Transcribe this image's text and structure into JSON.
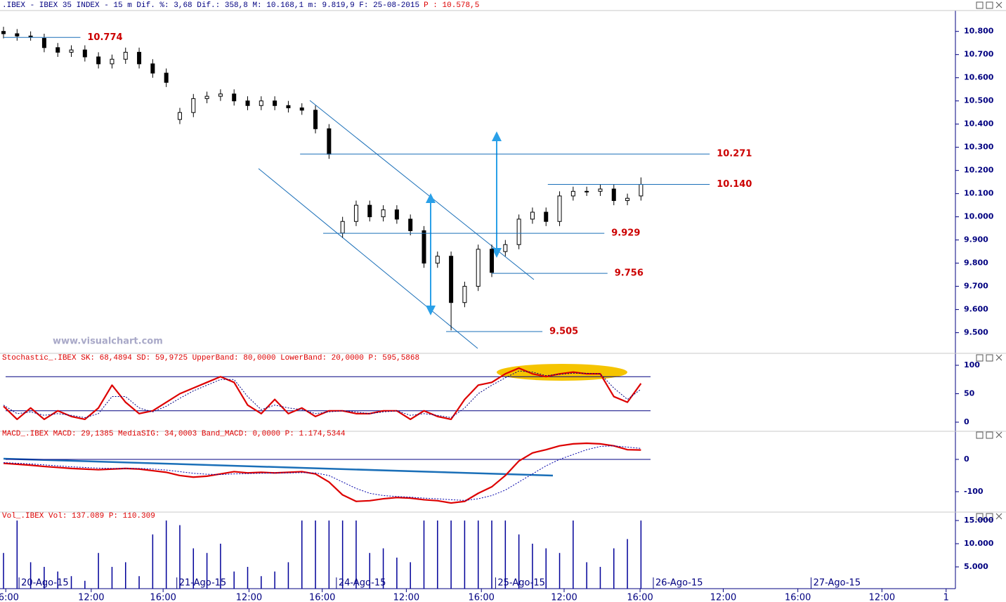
{
  "watermark": "www.visualchart.com",
  "chart_data": [
    {
      "type": "candlestick",
      "title": ".IBEX - IBEX 35 INDEX -  15 m Dif. %: 3,68 Dif.: 358,8 M: 10.168,1 m: 9.819,9 F: 25-08-2015",
      "subtitle": "P : 10.578,5",
      "x": [
        0,
        3,
        6,
        9,
        12,
        15,
        18,
        21,
        24,
        27,
        30,
        33,
        36,
        39,
        42,
        45,
        48,
        51,
        54,
        57,
        60,
        63,
        66,
        69,
        72,
        75,
        78,
        81,
        84,
        87,
        90,
        93,
        96,
        99,
        102,
        105,
        108,
        111,
        114,
        117,
        120,
        123,
        126,
        129,
        132,
        135,
        138,
        141
      ],
      "open": [
        10.8,
        10.79,
        10.78,
        10.77,
        10.73,
        10.71,
        10.72,
        10.69,
        10.66,
        10.68,
        10.71,
        10.66,
        10.62,
        10.42,
        10.45,
        10.51,
        10.52,
        10.53,
        10.5,
        10.48,
        10.5,
        10.48,
        10.47,
        10.46,
        10.38,
        9.93,
        9.98,
        10.05,
        10.0,
        10.03,
        9.99,
        9.94,
        9.8,
        9.83,
        9.63,
        9.7,
        9.86,
        9.85,
        9.88,
        9.99,
        10.02,
        9.98,
        10.09,
        10.11,
        10.11,
        10.12,
        10.07,
        10.09
      ],
      "high": [
        10.82,
        10.81,
        10.8,
        10.79,
        10.75,
        10.74,
        10.74,
        10.71,
        10.7,
        10.73,
        10.73,
        10.68,
        10.64,
        10.47,
        10.53,
        10.54,
        10.55,
        10.55,
        10.52,
        10.52,
        10.52,
        10.5,
        10.49,
        10.48,
        10.4,
        10.0,
        10.07,
        10.07,
        10.05,
        10.05,
        10.01,
        9.96,
        9.85,
        9.85,
        9.72,
        9.88,
        9.88,
        9.9,
        10.01,
        10.04,
        10.04,
        10.11,
        10.13,
        10.13,
        10.14,
        10.14,
        10.1,
        10.17
      ],
      "low": [
        10.77,
        10.76,
        10.76,
        10.71,
        10.69,
        10.69,
        10.67,
        10.64,
        10.64,
        10.66,
        10.64,
        10.6,
        10.56,
        10.4,
        10.43,
        10.49,
        10.5,
        10.48,
        10.46,
        10.46,
        10.46,
        10.45,
        10.44,
        10.36,
        10.25,
        9.91,
        9.96,
        9.98,
        9.98,
        9.97,
        9.92,
        9.78,
        9.78,
        9.51,
        9.61,
        9.68,
        9.74,
        9.83,
        9.86,
        9.97,
        9.96,
        9.96,
        10.07,
        10.09,
        10.09,
        10.05,
        10.05,
        10.07
      ],
      "close": [
        10.79,
        10.78,
        10.78,
        10.73,
        10.71,
        10.72,
        10.69,
        10.66,
        10.68,
        10.71,
        10.66,
        10.62,
        10.58,
        10.45,
        10.51,
        10.52,
        10.53,
        10.5,
        10.48,
        10.5,
        10.48,
        10.47,
        10.46,
        10.38,
        10.27,
        9.98,
        10.05,
        10.0,
        10.03,
        9.99,
        9.94,
        9.8,
        9.83,
        9.63,
        9.7,
        9.86,
        9.76,
        9.88,
        9.99,
        10.02,
        9.98,
        10.09,
        10.11,
        10.11,
        10.12,
        10.07,
        10.08,
        10.14
      ],
      "up_color": "#ffffff",
      "down_color": "#000000",
      "wick_color": "#000000",
      "xlim": [
        0,
        209
      ],
      "ylim": [
        9.42,
        10.89
      ],
      "yticks": [
        {
          "value": 9.5,
          "label": "9.500"
        },
        {
          "value": 9.6,
          "label": "9.600"
        },
        {
          "value": 9.7,
          "label": "9.700"
        },
        {
          "value": 9.8,
          "label": "9.800"
        },
        {
          "value": 9.9,
          "label": "9.900"
        },
        {
          "value": 10.0,
          "label": "10.000"
        },
        {
          "value": 10.1,
          "label": "10.100"
        },
        {
          "value": 10.2,
          "label": "10.200"
        },
        {
          "value": 10.3,
          "label": "10.300"
        },
        {
          "value": 10.4,
          "label": "10.400"
        },
        {
          "value": 10.5,
          "label": "10.500"
        },
        {
          "value": 10.6,
          "label": "10.600"
        },
        {
          "value": 10.7,
          "label": "10.700"
        },
        {
          "value": 10.8,
          "label": "10.800"
        }
      ],
      "annotations": [
        {
          "value": 10.774,
          "label": "10.774",
          "from": 0,
          "to": 17
        },
        {
          "value": 10.271,
          "label": "10.271",
          "from": 65.6,
          "to": 156.2
        },
        {
          "value": 10.14,
          "label": "10.140",
          "from": 120.4,
          "to": 156.2
        },
        {
          "value": 9.929,
          "label": "9.929",
          "from": 70.7,
          "to": 132.9
        },
        {
          "value": 9.756,
          "label": "9.756",
          "from": 108,
          "to": 133.6
        },
        {
          "value": 9.505,
          "label": "9.505",
          "from": 97.9,
          "to": 119.2
        }
      ],
      "annotation_color": "#1a6fb8"
    },
    {
      "type": "line",
      "title": "Stochastic_.IBEX SK: 68,4894 SD: 59,9725 UpperBand: 80,0000 LowerBand: 20,0000 P: 595,5868",
      "x": [
        0,
        3,
        6,
        9,
        12,
        15,
        18,
        21,
        24,
        27,
        30,
        33,
        36,
        39,
        42,
        45,
        48,
        51,
        54,
        57,
        60,
        63,
        66,
        69,
        72,
        75,
        78,
        81,
        84,
        87,
        90,
        93,
        96,
        99,
        102,
        105,
        108,
        111,
        114,
        117,
        120,
        123,
        126,
        129,
        132,
        135,
        138,
        141
      ],
      "series": [
        {
          "name": "SK",
          "color": "#dd0000",
          "values": [
            28,
            5,
            25,
            5,
            20,
            10,
            5,
            25,
            65,
            35,
            15,
            20,
            35,
            50,
            60,
            70,
            80,
            70,
            30,
            15,
            40,
            15,
            25,
            10,
            20,
            20,
            15,
            15,
            20,
            20,
            5,
            20,
            10,
            5,
            40,
            65,
            70,
            85,
            95,
            85,
            80,
            85,
            88,
            85,
            85,
            45,
            35,
            68
          ]
        },
        {
          "name": "SD",
          "color": "#000080",
          "dashed": true,
          "values": [
            30,
            15,
            18,
            12,
            15,
            12,
            8,
            15,
            45,
            45,
            25,
            18,
            28,
            42,
            55,
            65,
            75,
            75,
            45,
            22,
            30,
            25,
            22,
            15,
            18,
            20,
            18,
            15,
            18,
            20,
            12,
            15,
            12,
            8,
            25,
            50,
            65,
            78,
            90,
            88,
            82,
            84,
            86,
            86,
            85,
            60,
            40,
            58
          ]
        }
      ],
      "hlines": [
        80,
        20
      ],
      "hline_color": "#000080",
      "xlim": [
        0,
        209
      ],
      "ylim": [
        -13.6,
        109.9
      ],
      "yticks": [
        0,
        50,
        100
      ]
    },
    {
      "type": "line",
      "title": "MACD_.IBEX MACD: 29,1385 MediaSIG: 34,0003 Band_MACD: 0,0000 P: 1.174,5344",
      "x": [
        0,
        3,
        6,
        9,
        12,
        15,
        18,
        21,
        24,
        27,
        30,
        33,
        36,
        39,
        42,
        45,
        48,
        51,
        54,
        57,
        60,
        63,
        66,
        69,
        72,
        75,
        78,
        81,
        84,
        87,
        90,
        93,
        96,
        99,
        102,
        105,
        108,
        111,
        114,
        117,
        120,
        123,
        126,
        129,
        132,
        135,
        138,
        141
      ],
      "series": [
        {
          "name": "MACD",
          "color": "#dd0000",
          "values": [
            -12,
            -15,
            -18,
            -22,
            -25,
            -28,
            -30,
            -32,
            -30,
            -28,
            -30,
            -35,
            -40,
            -50,
            -55,
            -52,
            -45,
            -38,
            -42,
            -40,
            -42,
            -40,
            -38,
            -45,
            -70,
            -110,
            -130,
            -128,
            -122,
            -118,
            -120,
            -125,
            -128,
            -135,
            -130,
            -105,
            -85,
            -50,
            -5,
            20,
            30,
            42,
            48,
            50,
            48,
            42,
            30,
            29
          ]
        },
        {
          "name": "MediaSIG",
          "color": "#0000aa",
          "dashed": true,
          "values": [
            -10,
            -12,
            -14,
            -17,
            -20,
            -23,
            -25,
            -27,
            -28,
            -28,
            -28,
            -30,
            -33,
            -38,
            -43,
            -46,
            -47,
            -45,
            -44,
            -43,
            -42,
            -42,
            -41,
            -42,
            -50,
            -70,
            -90,
            -105,
            -112,
            -115,
            -117,
            -120,
            -122,
            -125,
            -127,
            -122,
            -112,
            -95,
            -70,
            -45,
            -20,
            0,
            15,
            30,
            40,
            42,
            38,
            34
          ]
        }
      ],
      "hlines": [
        0
      ],
      "hline_color": "#000080",
      "xlim": [
        0,
        209
      ],
      "ylim": [
        -161,
        63
      ],
      "yticks": [
        -100,
        0
      ]
    },
    {
      "type": "bar",
      "title": "Vol_.IBEX Vol: 137.089 P: 110.309",
      "x": [
        0,
        3,
        6,
        9,
        12,
        15,
        18,
        21,
        24,
        27,
        30,
        33,
        36,
        39,
        42,
        45,
        48,
        51,
        54,
        57,
        60,
        63,
        66,
        69,
        72,
        75,
        78,
        81,
        84,
        87,
        90,
        93,
        96,
        99,
        102,
        105,
        108,
        111,
        114,
        117,
        120,
        123,
        126,
        129,
        132,
        135,
        138,
        141
      ],
      "values": [
        8000,
        15000,
        6000,
        5000,
        4000,
        3000,
        2000,
        8000,
        5000,
        6000,
        3000,
        12000,
        16000,
        14000,
        9000,
        8000,
        10000,
        4000,
        5000,
        3000,
        4000,
        6000,
        15000,
        16000,
        16000,
        16000,
        16000,
        8000,
        9000,
        7000,
        6000,
        15000,
        16000,
        16000,
        16000,
        16000,
        16000,
        15000,
        12000,
        10000,
        9000,
        8000,
        16000,
        6000,
        5000,
        9000,
        11000,
        16000
      ],
      "color": "#000099",
      "xlim": [
        0,
        209
      ],
      "ylim": [
        0,
        15150
      ],
      "yticks": [
        {
          "value": 5000,
          "label": "5.000"
        },
        {
          "value": 10000,
          "label": "10.000"
        },
        {
          "value": 15000,
          "label": "15.000"
        }
      ],
      "xticks": [
        {
          "value": 0.5,
          "label": "16:00"
        },
        {
          "value": 19.4,
          "label": "12:00"
        },
        {
          "value": 35.3,
          "label": "16:00"
        },
        {
          "value": 54.3,
          "label": "12:00"
        },
        {
          "value": 70.5,
          "label": "16:00"
        },
        {
          "value": 89.1,
          "label": "12:00"
        },
        {
          "value": 105.7,
          "label": "16:00"
        },
        {
          "value": 124,
          "label": "12:00"
        },
        {
          "value": 140.8,
          "label": "16:00"
        },
        {
          "value": 159.2,
          "label": "12:00"
        },
        {
          "value": 175.7,
          "label": "16:00"
        },
        {
          "value": 194.3,
          "label": "12:00"
        },
        {
          "value": 208.5,
          "label": "1"
        }
      ],
      "date_labels": [
        {
          "value": 3.9,
          "label": "20-Ago-15"
        },
        {
          "value": 38.8,
          "label": "21-Ago-15"
        },
        {
          "value": 74.1,
          "label": "24-Ago-15"
        },
        {
          "value": 109.3,
          "label": "25-Ago-15"
        },
        {
          "value": 144.2,
          "label": "26-Ago-15"
        },
        {
          "value": 179.1,
          "label": "27-Ago-15"
        }
      ]
    }
  ]
}
